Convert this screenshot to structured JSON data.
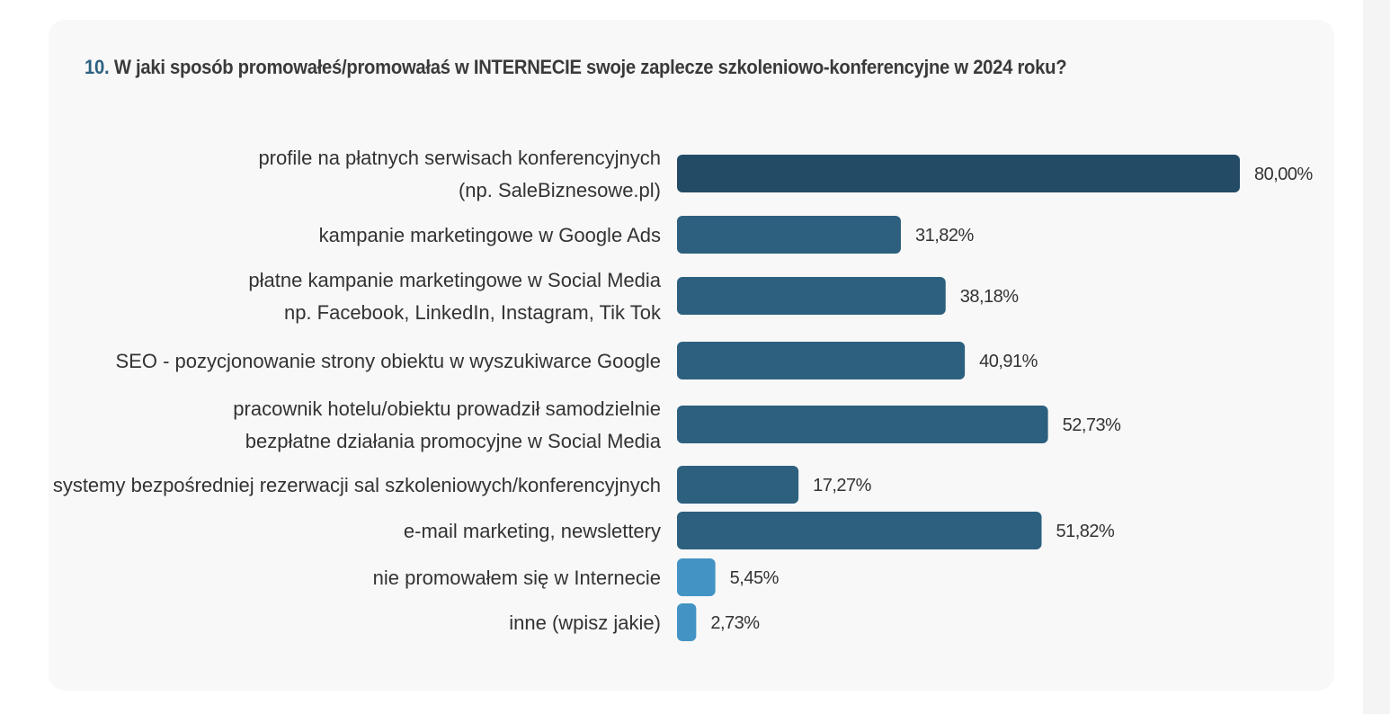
{
  "question": {
    "number": "10.",
    "text": "W jaki sposób promowałeś/promowałaś w INTERNECIE swoje zaplecze szkoleniowo-konferencyjne w 2024 roku?"
  },
  "colors": {
    "top": "#244b66",
    "mid": "#2d607f",
    "low": "#4394c4"
  },
  "chart_data": {
    "type": "bar",
    "orientation": "horizontal",
    "title": "W jaki sposób promowałeś/promowałaś w INTERNECIE swoje zaplecze szkoleniowo-konferencyjne w 2024 roku?",
    "xlabel": "",
    "ylabel": "",
    "xlim": [
      0,
      80
    ],
    "unit": "%",
    "categories": [
      [
        "profile na płatnych serwisach konferencyjnych",
        "(np. SaleBiznesowe.pl)"
      ],
      [
        "kampanie marketingowe w Google Ads"
      ],
      [
        "płatne kampanie marketingowe w Social Media",
        "np. Facebook, LinkedIn, Instagram, Tik Tok"
      ],
      [
        "SEO - pozycjonowanie strony obiektu w wyszukiwarce Google"
      ],
      [
        "pracownik hotelu/obiektu prowadził samodzielnie",
        "bezpłatne działania promocyjne w Social Media"
      ],
      [
        "systemy bezpośredniej rezerwacji sal szkoleniowych/konferencyjnych"
      ],
      [
        "e-mail marketing, newslettery"
      ],
      [
        "nie promowałem się w Internecie"
      ],
      [
        "inne (wpisz jakie)"
      ]
    ],
    "values": [
      80.0,
      31.82,
      38.18,
      40.91,
      52.73,
      17.27,
      51.82,
      5.45,
      2.73
    ],
    "labels": [
      "80,00%",
      "31,82%",
      "38,18%",
      "40,91%",
      "52,73%",
      "17,27%",
      "51,82%",
      "5,45%",
      "2,73%"
    ],
    "color_group": [
      "top",
      "mid",
      "mid",
      "mid",
      "mid",
      "mid",
      "mid",
      "low",
      "low"
    ],
    "grid": false,
    "legend": "none"
  }
}
